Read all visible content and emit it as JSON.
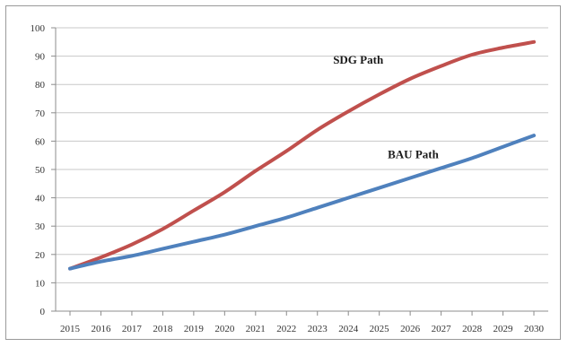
{
  "chart_data": {
    "type": "line",
    "title": "",
    "xlabel": "",
    "ylabel": "",
    "ylim": [
      0,
      100
    ],
    "yticks": [
      0,
      10,
      20,
      30,
      40,
      50,
      60,
      70,
      80,
      90,
      100
    ],
    "categories": [
      "2015",
      "2016",
      "2017",
      "2018",
      "2019",
      "2020",
      "2021",
      "2022",
      "2023",
      "2024",
      "2025",
      "2026",
      "2027",
      "2028",
      "2029",
      "2030"
    ],
    "grid": "horizontal",
    "legend": "none",
    "series": [
      {
        "name": "SDG Path",
        "color": "#c0504d",
        "values": [
          15,
          19,
          23.5,
          29,
          35.5,
          42,
          49.5,
          56.5,
          64,
          70.5,
          76.5,
          82,
          86.5,
          90.5,
          93,
          95
        ]
      },
      {
        "name": "BAU Path",
        "color": "#4f81bd",
        "values": [
          15,
          17.5,
          19.5,
          22,
          24.5,
          27,
          30,
          33,
          36.5,
          40,
          43.5,
          47,
          50.5,
          54,
          58,
          62
        ]
      }
    ]
  }
}
